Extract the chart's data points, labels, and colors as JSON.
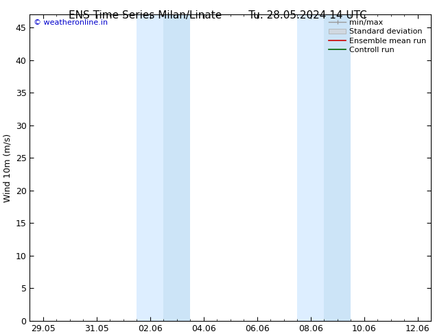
{
  "title_left": "ENS Time Series Milan/Linate",
  "title_right": "Tu. 28.05.2024 14 UTC",
  "ylabel": "Wind 10m (m/s)",
  "watermark": "© weatheronline.in",
  "watermark_color": "#0000cc",
  "ylim": [
    0,
    47
  ],
  "yticks": [
    0,
    5,
    10,
    15,
    20,
    25,
    30,
    35,
    40,
    45
  ],
  "xtick_labels": [
    "29.05",
    "31.05",
    "02.06",
    "04.06",
    "06.06",
    "08.06",
    "10.06",
    "12.06"
  ],
  "xtick_positions": [
    0,
    2,
    4,
    6,
    8,
    10,
    12,
    14
  ],
  "background_color": "#ffffff",
  "plot_bg_color": "#ffffff",
  "shaded_bands": [
    {
      "x_start": 3.5,
      "x_end": 4.5,
      "color": "#ddeeff"
    },
    {
      "x_start": 4.5,
      "x_end": 5.5,
      "color": "#cce4f7"
    },
    {
      "x_start": 9.5,
      "x_end": 10.5,
      "color": "#ddeeff"
    },
    {
      "x_start": 10.5,
      "x_end": 11.5,
      "color": "#cce4f7"
    }
  ],
  "title_fontsize": 11,
  "axis_fontsize": 9,
  "tick_fontsize": 9,
  "xlim": [
    -0.5,
    14.5
  ],
  "border_color": "#000000",
  "legend_fontsize": 8
}
